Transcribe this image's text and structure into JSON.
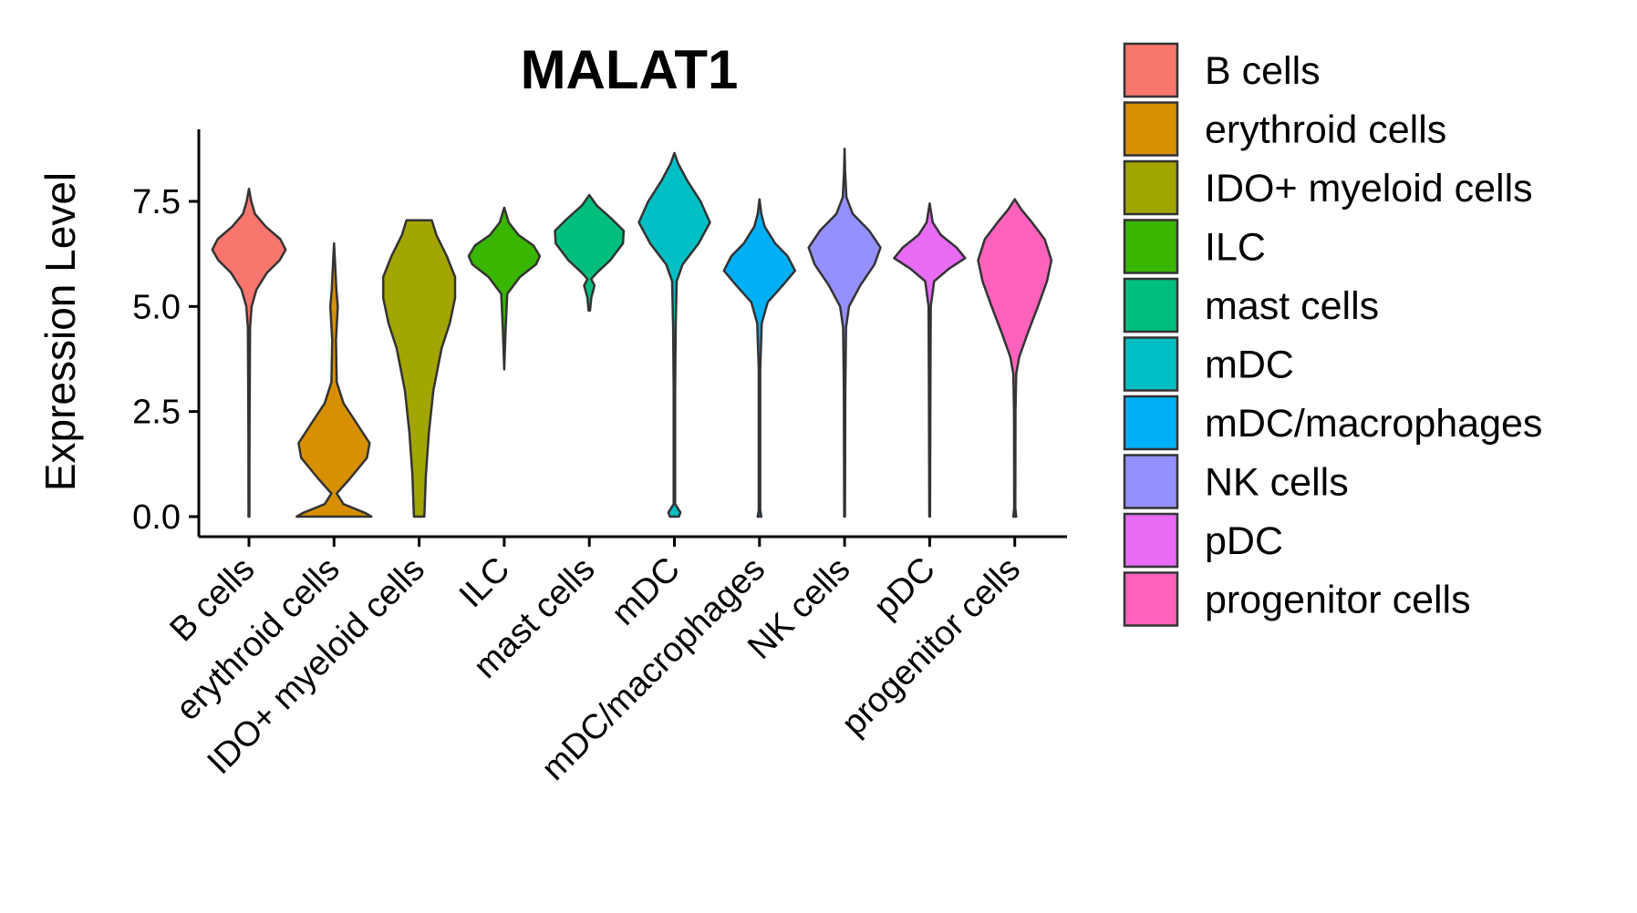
{
  "chart_data": {
    "type": "violin",
    "title": "MALAT1",
    "xlabel": "",
    "ylabel": "Expression Level",
    "ylim": [
      -0.4,
      9.2
    ],
    "yticks": [
      0.0,
      2.5,
      5.0,
      7.5
    ],
    "ytick_labels": [
      "0.0",
      "2.5",
      "5.0",
      "7.5"
    ],
    "grid": false,
    "legend_position": "right",
    "categories": [
      "B cells",
      "erythroid cells",
      "IDO+ myeloid cells",
      "ILC",
      "mast cells",
      "mDC",
      "mDC/macrophages",
      "NK cells",
      "pDC",
      "progenitor cells"
    ],
    "colors": [
      "#F8766D",
      "#D89000",
      "#A3A500",
      "#39B600",
      "#00BF7D",
      "#00BFC4",
      "#00B0F6",
      "#9590FF",
      "#E76BF3",
      "#FF62BC"
    ],
    "series": [
      {
        "name": "B cells",
        "min": 0.0,
        "max": 7.8,
        "mode": 6.4
      },
      {
        "name": "erythroid cells",
        "min": 0.0,
        "max": 6.5,
        "mode": 1.7
      },
      {
        "name": "IDO+ myeloid cells",
        "min": 0.0,
        "max": 7.05,
        "mode": 5.4
      },
      {
        "name": "ILC",
        "min": 3.5,
        "max": 7.35,
        "mode": 6.2
      },
      {
        "name": "mast cells",
        "min": 4.9,
        "max": 7.65,
        "mode": 6.7
      },
      {
        "name": "mDC",
        "min": 0.0,
        "max": 8.65,
        "mode": 7.0
      },
      {
        "name": "mDC/macrophages",
        "min": 0.0,
        "max": 7.55,
        "mode": 5.9
      },
      {
        "name": "NK cells",
        "min": 0.0,
        "max": 8.75,
        "mode": 6.4
      },
      {
        "name": "pDC",
        "min": 0.0,
        "max": 7.45,
        "mode": 6.2
      },
      {
        "name": "progenitor cells",
        "min": 0.0,
        "max": 7.55,
        "mode": 6.1
      }
    ]
  }
}
